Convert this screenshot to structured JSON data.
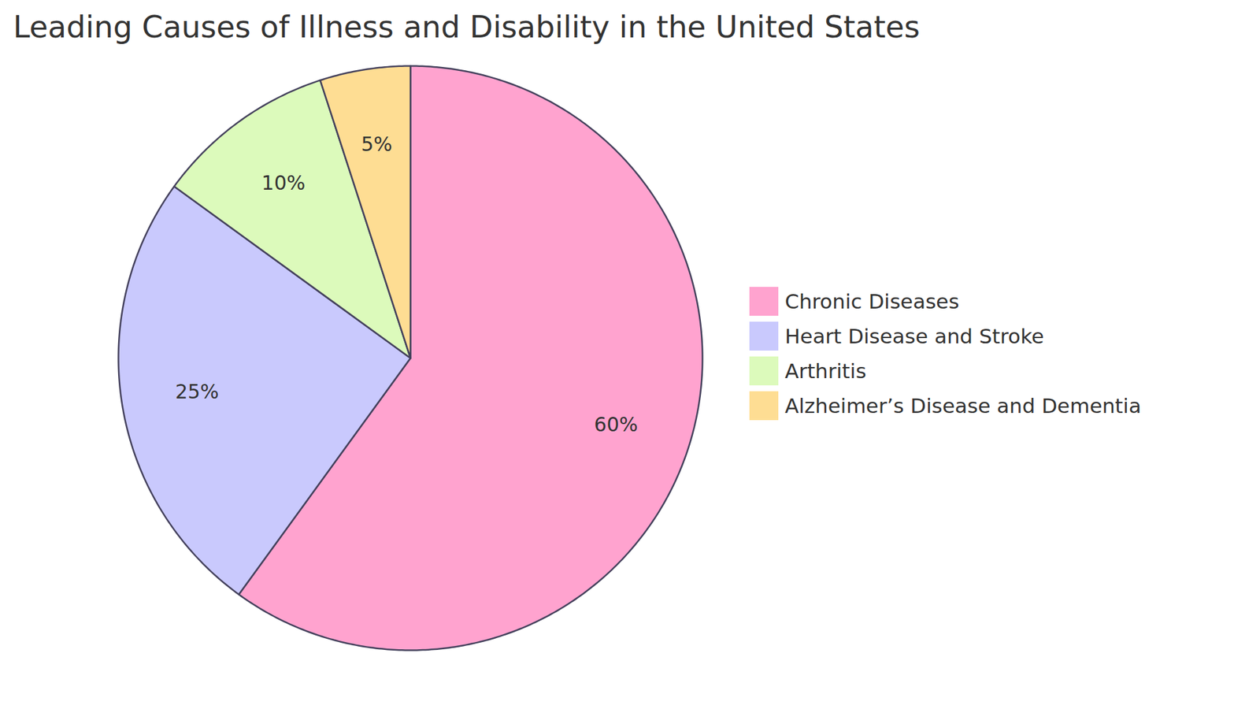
{
  "chart_data": {
    "type": "pie",
    "title": "Leading Causes of Illness and Disability in the United States",
    "categories": [
      "Chronic Diseases",
      "Heart Disease and Stroke",
      "Arthritis",
      "Alzheimer’s Disease and Dementia"
    ],
    "values": [
      60,
      25,
      10,
      5
    ],
    "value_labels": [
      "60%",
      "25%",
      "10%",
      "5%"
    ],
    "colors": [
      "#ffa3cf",
      "#c9c9fd",
      "#dcfabb",
      "#fedd93"
    ],
    "data_labels": true,
    "legend": "right"
  }
}
